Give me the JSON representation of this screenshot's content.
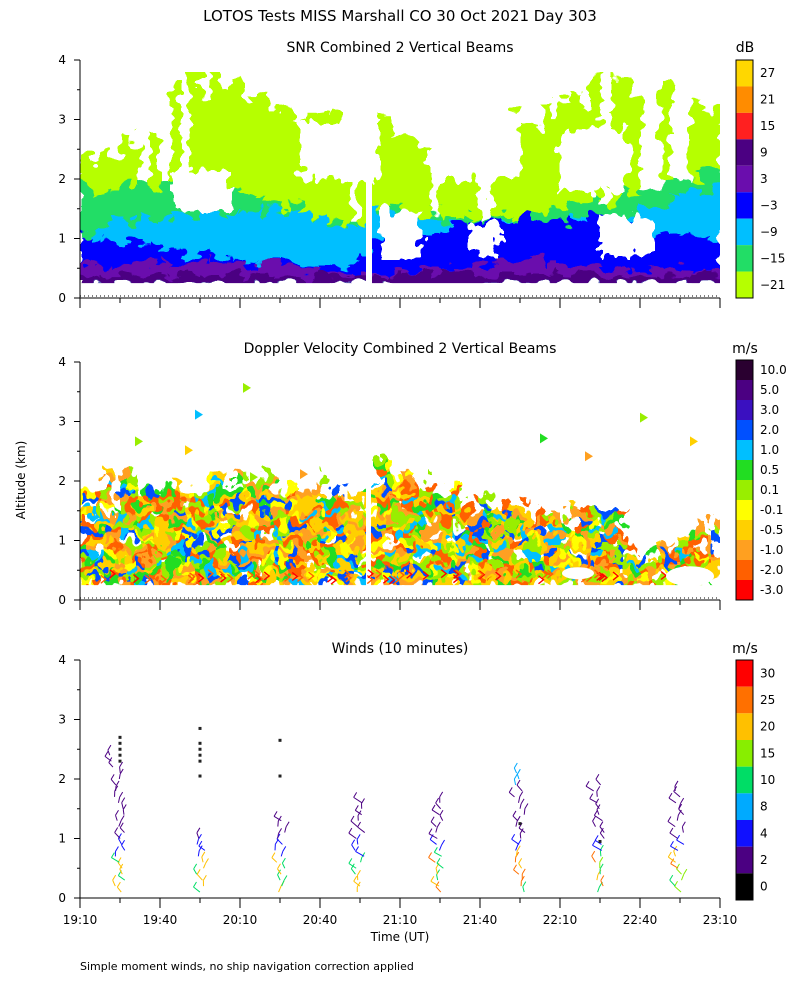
{
  "title": "LOTOS Tests MISS Marshall CO  30 Oct 2021 Day 303",
  "ylabel": "Altitude (km)",
  "xlabel": "Time (UT)",
  "footnote": "Simple moment winds, no ship navigation correction applied",
  "chart_data": [
    {
      "type": "heatmap",
      "title": "SNR Combined 2 Vertical Beams",
      "units": "dB",
      "x_ticks": [
        "19:10",
        "19:40",
        "20:10",
        "20:40",
        "21:10",
        "21:40",
        "22:10",
        "22:40",
        "23:10"
      ],
      "y_ticks": [
        "0",
        "1",
        "2",
        "3",
        "4"
      ],
      "x_range_utc": [
        "19:10",
        "23:10"
      ],
      "ylim": [
        0,
        4
      ],
      "colorbar": {
        "labels": [
          "27",
          "21",
          "15",
          "9",
          "3",
          "−3",
          "−9",
          "−15",
          "−21"
        ],
        "colors": [
          "#ffd700",
          "#ff8c00",
          "#ff2020",
          "#4b0082",
          "#6a0dad",
          "#0000ff",
          "#00bfff",
          "#22dd66",
          "#b6ff00"
        ]
      },
      "profile_description": [
        {
          "altitude_km": [
            0.2,
            0.5
          ],
          "snr_db": 6
        },
        {
          "altitude_km": [
            0.5,
            1.0
          ],
          "snr_db": -3
        },
        {
          "altitude_km": [
            1.0,
            1.6
          ],
          "snr_db": -9
        },
        {
          "altitude_km": [
            1.6,
            2.2
          ],
          "snr_db": -15
        },
        {
          "altitude_km": [
            2.2,
            3.8
          ],
          "snr_db": -21
        }
      ]
    },
    {
      "type": "heatmap",
      "title": "Doppler Velocity Combined 2 Vertical Beams",
      "units": "m/s",
      "x_ticks": [
        "19:10",
        "19:40",
        "20:10",
        "20:40",
        "21:10",
        "21:40",
        "22:10",
        "22:40",
        "23:10"
      ],
      "y_ticks": [
        "0",
        "1",
        "2",
        "3",
        "4"
      ],
      "ylim": [
        0,
        4
      ],
      "colorbar": {
        "labels": [
          "10.0",
          "5.0",
          "3.0",
          "2.0",
          "1.0",
          "0.5",
          "0.1",
          "-0.1",
          "-0.5",
          "-1.0",
          "-2.0",
          "-3.0"
        ],
        "colors": [
          "#2a0030",
          "#4b0082",
          "#3a10c0",
          "#0050ff",
          "#00bfff",
          "#22dd22",
          "#99ee00",
          "#ffff00",
          "#ffd000",
          "#ffa020",
          "#ff6000",
          "#ff0000"
        ]
      }
    },
    {
      "type": "scatter",
      "title": "Winds (10 minutes)",
      "units": "m/s",
      "x_ticks": [
        "19:10",
        "19:40",
        "20:10",
        "20:40",
        "21:10",
        "21:40",
        "22:10",
        "22:40",
        "23:10"
      ],
      "y_ticks": [
        "0",
        "1",
        "2",
        "3",
        "4"
      ],
      "ylim": [
        0,
        4
      ],
      "colorbar": {
        "labels": [
          "30",
          "25",
          "20",
          "15",
          "10",
          "8",
          "4",
          "2",
          "0"
        ],
        "colors": [
          "#ff0000",
          "#ff7000",
          "#ffc000",
          "#88ee00",
          "#00dd66",
          "#00aaff",
          "#1010ff",
          "#4b0082",
          "#000000"
        ]
      },
      "profiles": [
        {
          "time": "19:25",
          "top_km": 2.4,
          "dots_km": [
            2.7,
            2.6,
            2.5,
            2.4,
            2.3
          ]
        },
        {
          "time": "19:55",
          "top_km": 1.0,
          "dots_km": [
            2.85,
            2.6,
            2.5,
            2.4,
            2.3,
            2.05
          ]
        },
        {
          "time": "20:25",
          "top_km": 1.3,
          "dots_km": [
            2.65,
            2.05
          ]
        },
        {
          "time": "20:55",
          "top_km": 1.65,
          "dots_km": []
        },
        {
          "time": "21:25",
          "top_km": 1.6,
          "dots_km": []
        },
        {
          "time": "21:55",
          "top_km": 2.1,
          "dots_km": [
            1.25
          ]
        },
        {
          "time": "22:25",
          "top_km": 1.85,
          "dots_km": [
            0.95
          ]
        },
        {
          "time": "22:55",
          "top_km": 1.8,
          "dots_km": []
        }
      ]
    }
  ]
}
